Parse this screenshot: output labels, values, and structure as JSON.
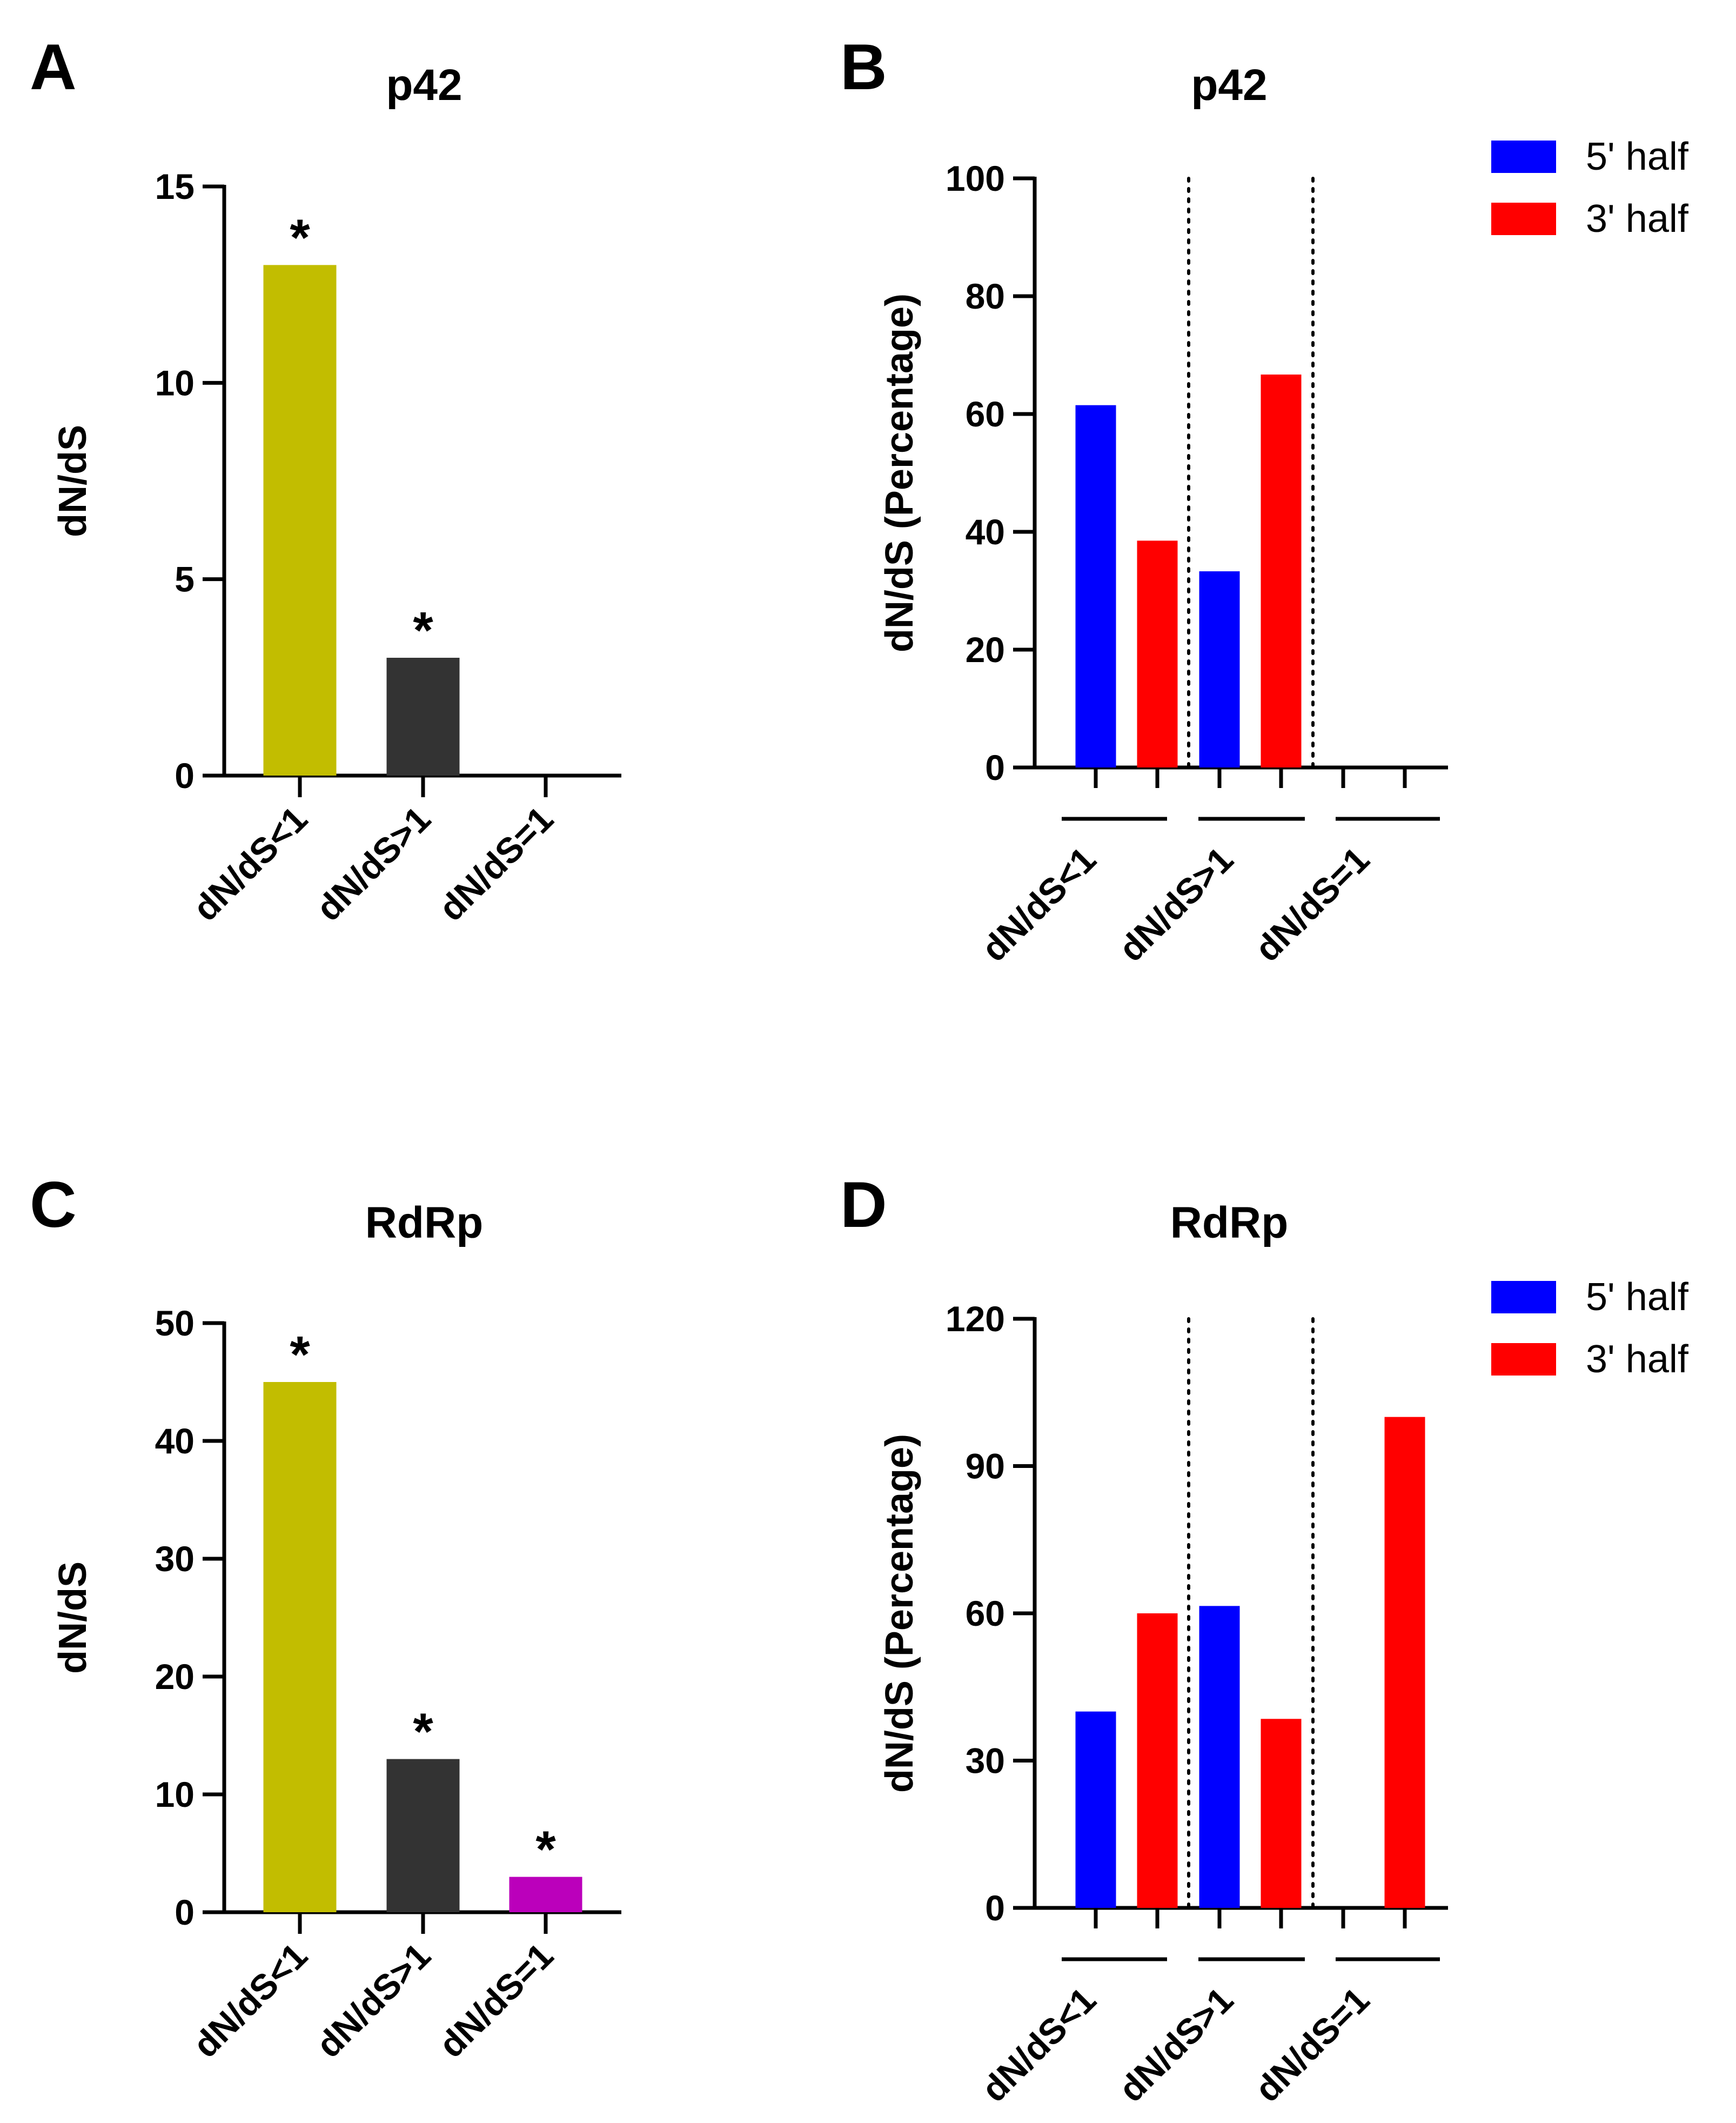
{
  "panels": [
    {
      "letter": "A",
      "title": "p42",
      "ylabel": "dN/dS",
      "yticks": [
        "0",
        "5",
        "10",
        "15"
      ]
    },
    {
      "letter": "B",
      "title": "p42",
      "ylabel": "dN/dS (Percentage)",
      "yticks": [
        "0",
        "20",
        "40",
        "60",
        "80",
        "100"
      ]
    },
    {
      "letter": "C",
      "title": "RdRp",
      "ylabel": "dN/dS",
      "yticks": [
        "0",
        "10",
        "20",
        "30",
        "40",
        "50"
      ]
    },
    {
      "letter": "D",
      "title": "RdRp",
      "ylabel": "dN/dS (Percentage)",
      "yticks": [
        "0",
        "30",
        "60",
        "90",
        "120"
      ]
    }
  ],
  "chart_data": [
    {
      "panel": "A",
      "type": "bar",
      "title": "p42",
      "ylabel": "dN/dS",
      "categories": [
        "dN/dS<1",
        "dN/dS>1",
        "dN/dS=1"
      ],
      "values": [
        13,
        3,
        0
      ],
      "bar_colors": [
        "#c2bd00",
        "#333333",
        "#bb00bb"
      ],
      "significance": [
        "*",
        "*",
        ""
      ],
      "ylim": [
        0,
        15
      ],
      "grid": false
    },
    {
      "panel": "B",
      "type": "bar",
      "title": "p42",
      "ylabel": "dN/dS (Percentage)",
      "categories": [
        "dN/dS<1",
        "dN/dS>1",
        "dN/dS=1"
      ],
      "series": [
        {
          "name": "5' half",
          "color": "#0000ff",
          "values": [
            61.5,
            33.3,
            0
          ]
        },
        {
          "name": "3' half",
          "color": "#ff0000",
          "values": [
            38.5,
            66.7,
            0
          ]
        }
      ],
      "ylim": [
        0,
        100
      ],
      "legend": "top-right",
      "grid": false
    },
    {
      "panel": "C",
      "type": "bar",
      "title": "RdRp",
      "ylabel": "dN/dS",
      "categories": [
        "dN/dS<1",
        "dN/dS>1",
        "dN/dS=1"
      ],
      "values": [
        45,
        13,
        3
      ],
      "bar_colors": [
        "#c2bd00",
        "#333333",
        "#bb00bb"
      ],
      "significance": [
        "*",
        "*",
        "*"
      ],
      "ylim": [
        0,
        50
      ],
      "grid": false
    },
    {
      "panel": "D",
      "type": "bar",
      "title": "RdRp",
      "ylabel": "dN/dS (Percentage)",
      "categories": [
        "dN/dS<1",
        "dN/dS>1",
        "dN/dS=1"
      ],
      "series": [
        {
          "name": "5' half",
          "color": "#0000ff",
          "values": [
            40,
            61.5,
            0
          ]
        },
        {
          "name": "3' half",
          "color": "#ff0000",
          "values": [
            60,
            38.5,
            100
          ]
        }
      ],
      "ylim": [
        0,
        120
      ],
      "legend": "top-right",
      "grid": false
    }
  ]
}
